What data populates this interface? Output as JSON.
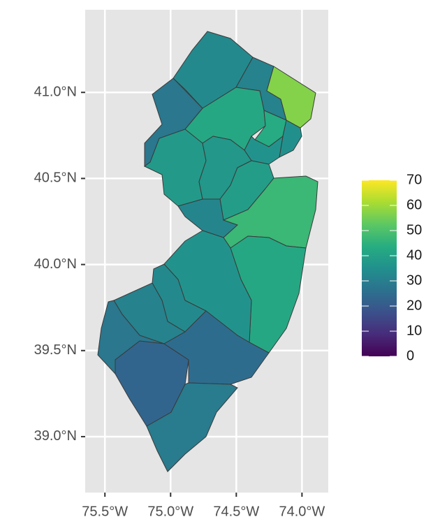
{
  "chart_data": {
    "type": "choropleth",
    "values": [
      33,
      31,
      57,
      28,
      42,
      43,
      35,
      36,
      38,
      37,
      39,
      32,
      47,
      42,
      36,
      33,
      31,
      28,
      23,
      25,
      29
    ],
    "xlim": [
      -75.65,
      -73.8
    ],
    "ylim": [
      38.675,
      41.48
    ],
    "xticks": [
      {
        "value": -75.5,
        "label": "75.5°W"
      },
      {
        "value": -75.0,
        "label": "75.0°W"
      },
      {
        "value": -74.5,
        "label": "74.5°W"
      },
      {
        "value": -74.0,
        "label": "74.0°W"
      }
    ],
    "yticks": [
      {
        "value": 39.0,
        "label": "39.0°N"
      },
      {
        "value": 39.5,
        "label": "39.5°N"
      },
      {
        "value": 40.0,
        "label": "40.0°N"
      },
      {
        "value": 40.5,
        "label": "40.5°N"
      },
      {
        "value": 41.0,
        "label": "41.0°N"
      }
    ],
    "clim": [
      0,
      70
    ],
    "colorticks": [
      0,
      10,
      20,
      30,
      40,
      50,
      60,
      70
    ],
    "colormap": "viridis",
    "grid": true
  }
}
